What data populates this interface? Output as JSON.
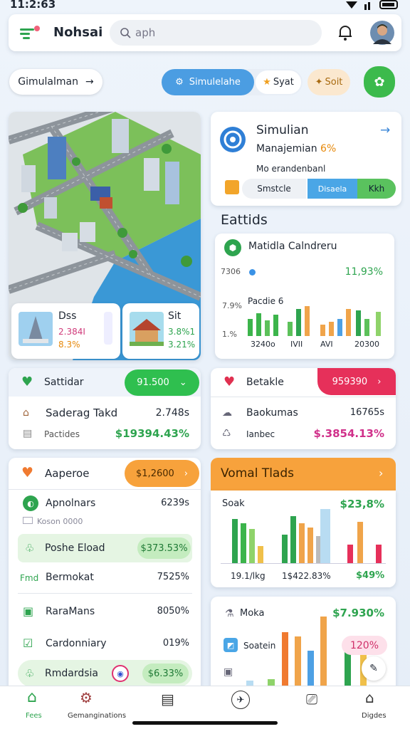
{
  "status_bar": {
    "time": "11:2:63"
  },
  "header": {
    "title": "Nohsai",
    "search_placeholder": "aph"
  },
  "toolbar": {
    "chip": "Gimulalman",
    "tabs": [
      "Simulelahe",
      "Syat",
      "Soit"
    ]
  },
  "map_card": {
    "places": [
      {
        "name": "Dss",
        "value": "2.384I",
        "change": "8.3%"
      },
      {
        "name": "Sit",
        "value": "3.8%1",
        "change": "3.21%"
      }
    ]
  },
  "simulation_card": {
    "title": "Simulian",
    "subtitle": "Manajemian",
    "badge": "6%",
    "note": "Mo erandenbanl",
    "buttons": [
      "Smstcle",
      "Disaela",
      "Kkh"
    ]
  },
  "stats": {
    "heading": "Eattids",
    "title": "Matidla Calndreru",
    "y_labels": [
      "7306",
      "7.9%",
      "1.%"
    ],
    "value": "11,93%",
    "caption": "Pacdie 6",
    "x_labels": [
      "3240o",
      "IVII",
      "AVI",
      "20300"
    ]
  },
  "panels": [
    {
      "title": "Sattidar",
      "badge": "91.500",
      "rows": [
        {
          "label": "Saderag Takd",
          "value": "2.748s"
        },
        {
          "label": "Pactides",
          "value": "$19394.43%"
        }
      ]
    },
    {
      "title": "Betakle",
      "badge": "959390",
      "rows": [
        {
          "label": "Baokumas",
          "value": "16765s"
        },
        {
          "label": "Ianbec",
          "value": "$.3854.13%"
        }
      ]
    },
    {
      "title": "Aaperoe",
      "badge": "$1,2600",
      "rows": [
        {
          "label": "Apnolnars",
          "value": "6239s",
          "note": "Koson 0000"
        },
        {
          "label": "Poshe Eload",
          "value": "$373.53%"
        },
        {
          "label": "Bermokat",
          "value": "7525%",
          "tag": "Fmd"
        },
        {
          "label": "RaraMans",
          "value": "8050%"
        },
        {
          "label": "Cardonniary",
          "value": "019%"
        },
        {
          "label": "Rmdardsia",
          "value": "$6.33%"
        }
      ]
    }
  ],
  "trends": {
    "title": "Vomal Tlads",
    "cards": [
      {
        "title": "Soak",
        "value": "$23,8%",
        "x_labels": [
          "19.1/lkg",
          "1$422.83%",
          "$49%"
        ]
      },
      {
        "title": "Moka",
        "value": "$7.930%",
        "item": "Soatein",
        "badge": "120%"
      }
    ]
  },
  "nav": {
    "labels": [
      "Fees",
      "Gemanginations",
      "Digdes"
    ]
  }
}
